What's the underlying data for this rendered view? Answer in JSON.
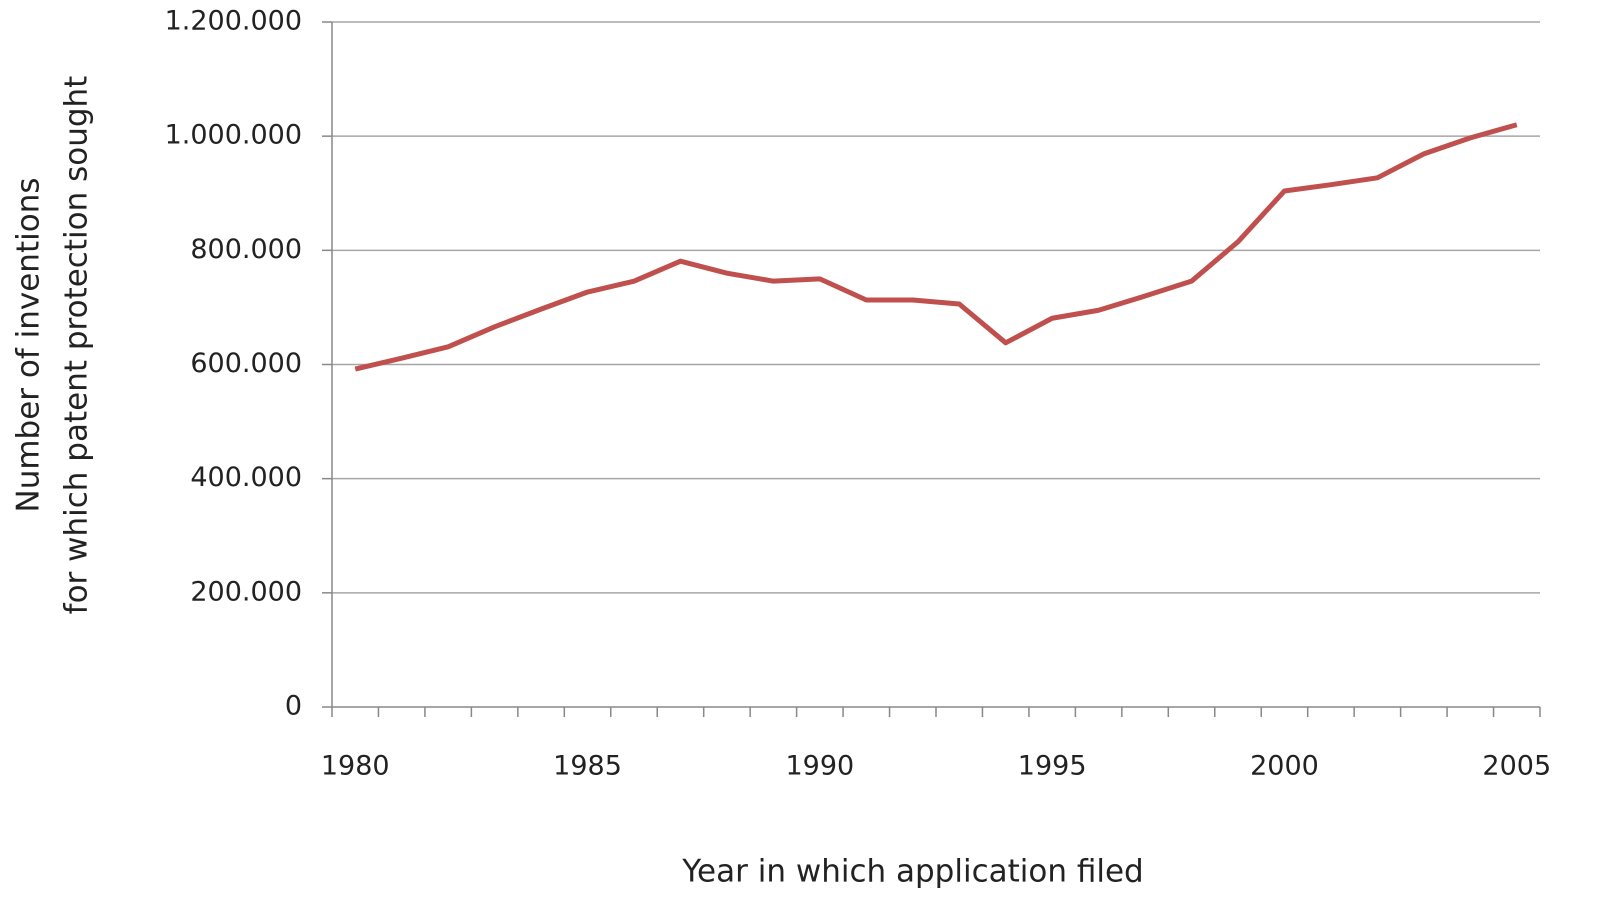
{
  "chart_data": {
    "type": "line",
    "x_label": "Year in which application filed",
    "y_label": [
      "Number of inventions",
      "for which patent protection sought"
    ],
    "categories": [
      "1980",
      null,
      null,
      null,
      null,
      "1985",
      null,
      null,
      null,
      null,
      "1990",
      null,
      null,
      null,
      null,
      "1995",
      null,
      null,
      null,
      null,
      "2000",
      null,
      null,
      null,
      null,
      "2005"
    ],
    "series": [
      {
        "name": "Inventions",
        "color": "#c0504d",
        "values": [
          592000,
          611000,
          631000,
          666000,
          697000,
          727000,
          746000,
          781000,
          760000,
          746000,
          750000,
          713000,
          713000,
          706000,
          638000,
          681000,
          695000,
          720000,
          746000,
          815000,
          904000,
          915000,
          927000,
          969000,
          997000,
          1020000
        ]
      }
    ],
    "ylim": [
      0,
      1200000
    ],
    "yticks": [
      0,
      {
        "value": 200000,
        "label": "200.000"
      },
      {
        "value": 400000,
        "label": "400.000"
      },
      {
        "value": 600000,
        "label": "600.000"
      },
      {
        "value": 800000,
        "label": "800.000"
      },
      {
        "value": 1000000,
        "label": "1.000.000"
      },
      {
        "value": 1200000,
        "label": "1.200.000"
      }
    ],
    "grid": true
  }
}
